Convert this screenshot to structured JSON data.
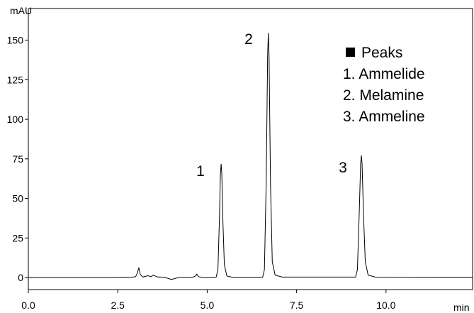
{
  "chart_data": {
    "type": "line",
    "y_label": "mAU",
    "x_label": "min",
    "x": [
      0,
      2.3,
      2.9,
      3.0,
      3.05,
      3.09,
      3.13,
      3.2,
      3.35,
      3.42,
      3.5,
      3.6,
      3.8,
      4.0,
      4.2,
      4.6,
      4.67,
      4.71,
      4.76,
      4.9,
      5.25,
      5.3,
      5.34,
      5.37,
      5.39,
      5.41,
      5.44,
      5.48,
      5.55,
      5.7,
      6.55,
      6.6,
      6.65,
      6.69,
      6.71,
      6.73,
      6.77,
      6.82,
      6.9,
      7.1,
      9.15,
      9.2,
      9.25,
      9.29,
      9.31,
      9.33,
      9.37,
      9.42,
      9.5,
      9.7,
      12.42
    ],
    "series": [
      {
        "color": "#000000",
        "values": [
          0,
          0,
          0.3,
          0.5,
          3,
          6.3,
          2,
          0.3,
          1.2,
          0.5,
          1.5,
          0.4,
          0.2,
          -1.2,
          0,
          0.2,
          1,
          2.2,
          0.5,
          0,
          0.2,
          5,
          35,
          65,
          71.8,
          65,
          35,
          8,
          1,
          0.2,
          0.2,
          5,
          60,
          140,
          154.5,
          140,
          60,
          10,
          1.5,
          0.3,
          0.3,
          5,
          40,
          72,
          77.2,
          72,
          40,
          10,
          1.5,
          0.3,
          0.2
        ]
      }
    ],
    "xlim": [
      0,
      12.42
    ],
    "ylim": [
      -7.6,
      170
    ],
    "xticks": [
      {
        "value": 0,
        "label": "0.0"
      },
      {
        "value": 2.5,
        "label": "2.5"
      },
      {
        "value": 5,
        "label": "5.0"
      },
      {
        "value": 7.5,
        "label": "7.5"
      },
      {
        "value": 10,
        "label": "10.0"
      }
    ],
    "yticks": [
      0,
      25,
      50,
      75,
      100,
      125,
      150
    ],
    "peak_labels": [
      "1",
      "2",
      "3"
    ],
    "legend_title": "Peaks",
    "legend_items": [
      "1. Ammelide",
      "2. Melamine",
      "3. Ammeline"
    ]
  }
}
